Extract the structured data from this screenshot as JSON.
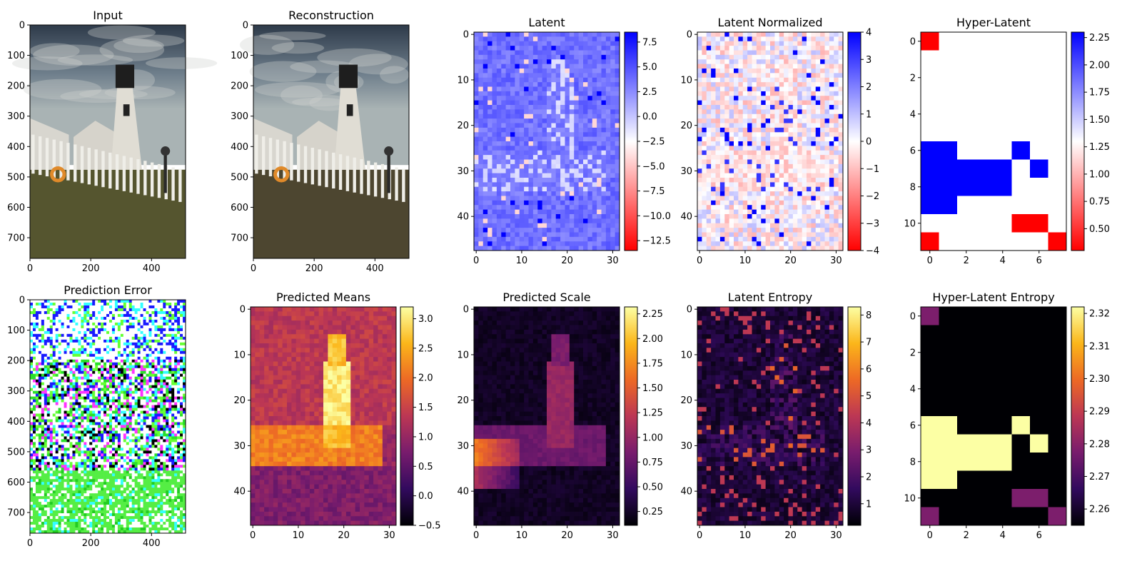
{
  "figure": {
    "colormaps": {
      "bwr": [
        "#ff0000",
        "#ffffff",
        "#0000ff"
      ],
      "inferno": [
        "#000004",
        "#320a5e",
        "#781c6d",
        "#bc3754",
        "#ed6925",
        "#fbb61a",
        "#fcffa4"
      ]
    }
  },
  "chart_data": [
    {
      "id": "input",
      "type": "heatmap",
      "title": "Input",
      "image": "photo",
      "xlim": [
        0,
        512
      ],
      "ylim": [
        768,
        0
      ],
      "xticks": [
        "0",
        "200",
        "400"
      ],
      "yticks": [
        "0",
        "100",
        "200",
        "300",
        "400",
        "500",
        "600",
        "700"
      ],
      "content": "lighthouse photograph"
    },
    {
      "id": "reconstruction",
      "type": "heatmap",
      "title": "Reconstruction",
      "image": "photo",
      "xlim": [
        0,
        512
      ],
      "ylim": [
        768,
        0
      ],
      "xticks": [
        "0",
        "200",
        "400"
      ],
      "yticks": [
        "0",
        "100",
        "200",
        "300",
        "400",
        "500",
        "600",
        "700"
      ],
      "content": "reconstructed lighthouse photograph"
    },
    {
      "id": "latent",
      "type": "heatmap",
      "title": "Latent",
      "colormap": "bwr",
      "grid_shape": [
        48,
        32
      ],
      "xlim": [
        -0.5,
        31.5
      ],
      "ylim": [
        47.5,
        -0.5
      ],
      "xticks": [
        "0",
        "10",
        "20",
        "30"
      ],
      "yticks": [
        "0",
        "10",
        "20",
        "30",
        "40"
      ],
      "colorbar": {
        "min": -13.5,
        "max": 8.5,
        "ticks": [
          "7.5",
          "5.0",
          "2.5",
          "0.0",
          "−2.5",
          "−5.0",
          "−7.5",
          "−10.0",
          "−12.5"
        ]
      }
    },
    {
      "id": "latent-normalized",
      "type": "heatmap",
      "title": "Latent Normalized",
      "colormap": "bwr",
      "grid_shape": [
        48,
        32
      ],
      "xlim": [
        -0.5,
        31.5
      ],
      "ylim": [
        47.5,
        -0.5
      ],
      "xticks": [
        "0",
        "10",
        "20",
        "30"
      ],
      "yticks": [
        "0",
        "10",
        "20",
        "30",
        "40"
      ],
      "colorbar": {
        "min": -4,
        "max": 4,
        "ticks": [
          "4",
          "3",
          "2",
          "1",
          "0",
          "−1",
          "−2",
          "−3",
          "−4"
        ]
      }
    },
    {
      "id": "hyper-latent",
      "type": "heatmap",
      "title": "Hyper-Latent",
      "colormap": "bwr",
      "grid_shape": [
        12,
        8
      ],
      "xlim": [
        -0.5,
        7.5
      ],
      "ylim": [
        11.5,
        -0.5
      ],
      "xticks": [
        "0",
        "2",
        "4",
        "6"
      ],
      "yticks": [
        "0",
        "2",
        "4",
        "6",
        "8",
        "10"
      ],
      "colorbar": {
        "min": 0.3,
        "max": 2.3,
        "ticks": [
          "2.25",
          "2.00",
          "1.75",
          "1.50",
          "1.25",
          "1.00",
          "0.75",
          "0.50"
        ]
      },
      "cells": [
        [
          0.3,
          1.3,
          1.3,
          1.3,
          1.3,
          1.3,
          1.3,
          1.3
        ],
        [
          1.3,
          1.3,
          1.3,
          1.3,
          1.3,
          1.3,
          1.3,
          1.3
        ],
        [
          1.3,
          1.3,
          1.3,
          1.3,
          1.3,
          1.3,
          1.3,
          1.3
        ],
        [
          1.3,
          1.3,
          1.3,
          1.3,
          1.3,
          1.3,
          1.3,
          1.3
        ],
        [
          1.3,
          1.3,
          1.3,
          1.3,
          1.3,
          1.3,
          1.3,
          1.3
        ],
        [
          1.3,
          1.3,
          1.3,
          1.3,
          1.3,
          1.3,
          1.3,
          1.3
        ],
        [
          2.3,
          2.3,
          1.3,
          1.3,
          1.3,
          2.3,
          1.3,
          1.3
        ],
        [
          2.3,
          2.3,
          2.3,
          2.3,
          2.3,
          1.3,
          2.3,
          1.3
        ],
        [
          2.3,
          2.3,
          2.3,
          2.3,
          2.3,
          1.3,
          1.3,
          1.3
        ],
        [
          2.3,
          2.3,
          1.3,
          1.3,
          1.3,
          1.3,
          1.3,
          1.3
        ],
        [
          1.3,
          1.3,
          1.3,
          1.3,
          1.3,
          0.3,
          0.3,
          1.3
        ],
        [
          0.3,
          1.3,
          1.3,
          1.3,
          1.3,
          1.3,
          1.3,
          0.3
        ]
      ]
    },
    {
      "id": "prediction-error",
      "type": "heatmap",
      "title": "Prediction Error",
      "image": "noise",
      "xlim": [
        0,
        512
      ],
      "ylim": [
        768,
        0
      ],
      "xticks": [
        "0",
        "200",
        "400"
      ],
      "yticks": [
        "0",
        "100",
        "200",
        "300",
        "400",
        "500",
        "600",
        "700"
      ]
    },
    {
      "id": "predicted-means",
      "type": "heatmap",
      "title": "Predicted Means",
      "colormap": "inferno",
      "grid_shape": [
        48,
        32
      ],
      "xlim": [
        -0.5,
        31.5
      ],
      "ylim": [
        47.5,
        -0.5
      ],
      "xticks": [
        "0",
        "10",
        "20",
        "30"
      ],
      "yticks": [
        "0",
        "10",
        "20",
        "30",
        "40"
      ],
      "colorbar": {
        "min": -0.5,
        "max": 3.2,
        "ticks": [
          "3.0",
          "2.5",
          "2.0",
          "1.5",
          "1.0",
          "0.5",
          "0.0",
          "−0.5"
        ]
      }
    },
    {
      "id": "predicted-scale",
      "type": "heatmap",
      "title": "Predicted Scale",
      "colormap": "inferno",
      "grid_shape": [
        48,
        32
      ],
      "xlim": [
        -0.5,
        31.5
      ],
      "ylim": [
        47.5,
        -0.5
      ],
      "xticks": [
        "0",
        "10",
        "20",
        "30"
      ],
      "yticks": [
        "0",
        "10",
        "20",
        "30",
        "40"
      ],
      "colorbar": {
        "min": 0.11,
        "max": 2.32,
        "ticks": [
          "2.25",
          "2.00",
          "1.75",
          "1.50",
          "1.25",
          "1.00",
          "0.75",
          "0.50",
          "0.25"
        ]
      }
    },
    {
      "id": "latent-entropy",
      "type": "heatmap",
      "title": "Latent Entropy",
      "colormap": "inferno",
      "grid_shape": [
        48,
        32
      ],
      "xlim": [
        -0.5,
        31.5
      ],
      "ylim": [
        47.5,
        -0.5
      ],
      "xticks": [
        "0",
        "10",
        "20",
        "30"
      ],
      "yticks": [
        "0",
        "10",
        "20",
        "30",
        "40"
      ],
      "colorbar": {
        "min": 0.2,
        "max": 8.3,
        "ticks": [
          "8",
          "7",
          "6",
          "5",
          "4",
          "3",
          "2",
          "1"
        ]
      }
    },
    {
      "id": "hyper-latent-entropy",
      "type": "heatmap",
      "title": "Hyper-Latent Entropy",
      "colormap": "inferno",
      "grid_shape": [
        12,
        8
      ],
      "xlim": [
        -0.5,
        7.5
      ],
      "ylim": [
        11.5,
        -0.5
      ],
      "xticks": [
        "0",
        "2",
        "4",
        "6"
      ],
      "yticks": [
        "0",
        "2",
        "4",
        "6",
        "8",
        "10"
      ],
      "colorbar": {
        "min": 2.255,
        "max": 2.322,
        "ticks": [
          "2.32",
          "2.31",
          "2.30",
          "2.29",
          "2.28",
          "2.27",
          "2.26"
        ]
      },
      "cells": [
        [
          2.278,
          2.255,
          2.255,
          2.255,
          2.255,
          2.255,
          2.255,
          2.255
        ],
        [
          2.255,
          2.255,
          2.255,
          2.255,
          2.255,
          2.255,
          2.255,
          2.255
        ],
        [
          2.255,
          2.255,
          2.255,
          2.255,
          2.255,
          2.255,
          2.255,
          2.255
        ],
        [
          2.255,
          2.255,
          2.255,
          2.255,
          2.255,
          2.255,
          2.255,
          2.255
        ],
        [
          2.255,
          2.255,
          2.255,
          2.255,
          2.255,
          2.255,
          2.255,
          2.255
        ],
        [
          2.255,
          2.255,
          2.255,
          2.255,
          2.255,
          2.255,
          2.255,
          2.255
        ],
        [
          2.322,
          2.322,
          2.255,
          2.255,
          2.255,
          2.322,
          2.255,
          2.255
        ],
        [
          2.322,
          2.322,
          2.322,
          2.322,
          2.322,
          2.255,
          2.322,
          2.255
        ],
        [
          2.322,
          2.322,
          2.322,
          2.322,
          2.322,
          2.255,
          2.255,
          2.255
        ],
        [
          2.322,
          2.322,
          2.255,
          2.255,
          2.255,
          2.255,
          2.255,
          2.255
        ],
        [
          2.255,
          2.255,
          2.255,
          2.255,
          2.255,
          2.278,
          2.278,
          2.255
        ],
        [
          2.278,
          2.255,
          2.255,
          2.255,
          2.255,
          2.255,
          2.255,
          2.278
        ]
      ]
    }
  ]
}
